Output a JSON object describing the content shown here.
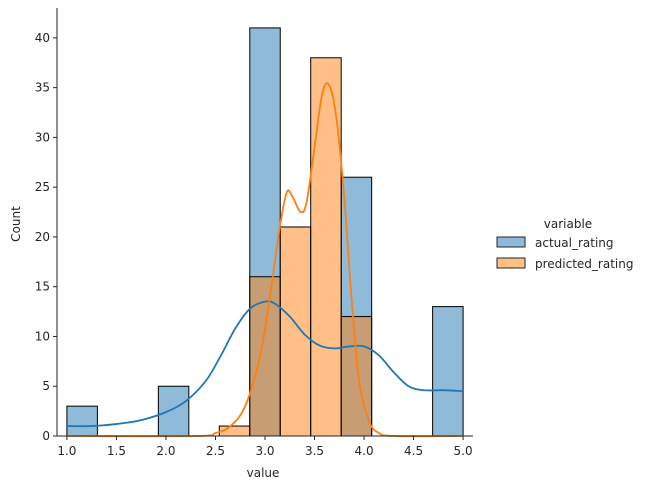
{
  "chart_data": {
    "type": "histogram",
    "xlabel": "value",
    "ylabel": "Count",
    "xlim": [
      0.9,
      5.1
    ],
    "ylim": [
      0,
      43
    ],
    "xticks": [
      1.0,
      1.5,
      2.0,
      2.5,
      3.0,
      3.5,
      4.0,
      4.5,
      5.0
    ],
    "xtick_labels": [
      "1.0",
      "1.5",
      "2.0",
      "2.5",
      "3.0",
      "3.5",
      "4.0",
      "4.5",
      "5.0"
    ],
    "yticks": [
      0,
      5,
      10,
      15,
      20,
      25,
      30,
      35,
      40
    ],
    "ytick_labels": [
      "0",
      "5",
      "10",
      "15",
      "20",
      "25",
      "30",
      "35",
      "40"
    ],
    "grid": false,
    "bin_edges": [
      1.0,
      1.3077,
      1.6154,
      1.9231,
      2.2308,
      2.5385,
      2.8462,
      3.1538,
      3.4615,
      3.7692,
      4.0769,
      4.3846,
      4.6923,
      5.0
    ],
    "legend": {
      "title": "variable",
      "position": "right"
    },
    "series": [
      {
        "name": "actual_rating",
        "color": "#1f77b4",
        "fill": "#8fb9da",
        "counts": [
          3,
          0,
          0,
          5,
          0,
          0,
          41,
          0,
          0,
          26,
          0,
          0,
          13
        ],
        "kde": [
          [
            1.0,
            1.0
          ],
          [
            1.25,
            1.0
          ],
          [
            1.5,
            1.2
          ],
          [
            1.75,
            1.6
          ],
          [
            2.0,
            2.4
          ],
          [
            2.2,
            3.5
          ],
          [
            2.4,
            5.5
          ],
          [
            2.55,
            8.0
          ],
          [
            2.7,
            10.8
          ],
          [
            2.85,
            12.8
          ],
          [
            3.0,
            13.5
          ],
          [
            3.1,
            13.3
          ],
          [
            3.25,
            12.0
          ],
          [
            3.4,
            10.2
          ],
          [
            3.55,
            9.1
          ],
          [
            3.7,
            8.8
          ],
          [
            3.85,
            9.0
          ],
          [
            4.0,
            9.0
          ],
          [
            4.15,
            8.1
          ],
          [
            4.3,
            6.4
          ],
          [
            4.45,
            5.0
          ],
          [
            4.6,
            4.6
          ],
          [
            4.8,
            4.6
          ],
          [
            5.0,
            4.5
          ]
        ]
      },
      {
        "name": "predicted_rating",
        "color": "#ff7f0e",
        "fill": "#ffbf86",
        "counts": [
          0,
          0,
          0,
          0,
          0,
          1,
          16,
          21,
          38,
          12,
          0,
          0,
          0
        ],
        "kde": [
          [
            1.0,
            0.0
          ],
          [
            2.3,
            0.0
          ],
          [
            2.5,
            0.3
          ],
          [
            2.65,
            1.0
          ],
          [
            2.8,
            3.0
          ],
          [
            2.95,
            8.0
          ],
          [
            3.05,
            14.0
          ],
          [
            3.15,
            21.0
          ],
          [
            3.22,
            24.5
          ],
          [
            3.28,
            24.0
          ],
          [
            3.36,
            22.5
          ],
          [
            3.42,
            23.5
          ],
          [
            3.5,
            29.0
          ],
          [
            3.58,
            34.5
          ],
          [
            3.65,
            35.2
          ],
          [
            3.72,
            32.0
          ],
          [
            3.8,
            24.0
          ],
          [
            3.88,
            13.0
          ],
          [
            3.95,
            5.5
          ],
          [
            4.05,
            1.5
          ],
          [
            4.15,
            0.3
          ],
          [
            4.3,
            0.0
          ],
          [
            5.0,
            0.0
          ]
        ]
      }
    ]
  }
}
